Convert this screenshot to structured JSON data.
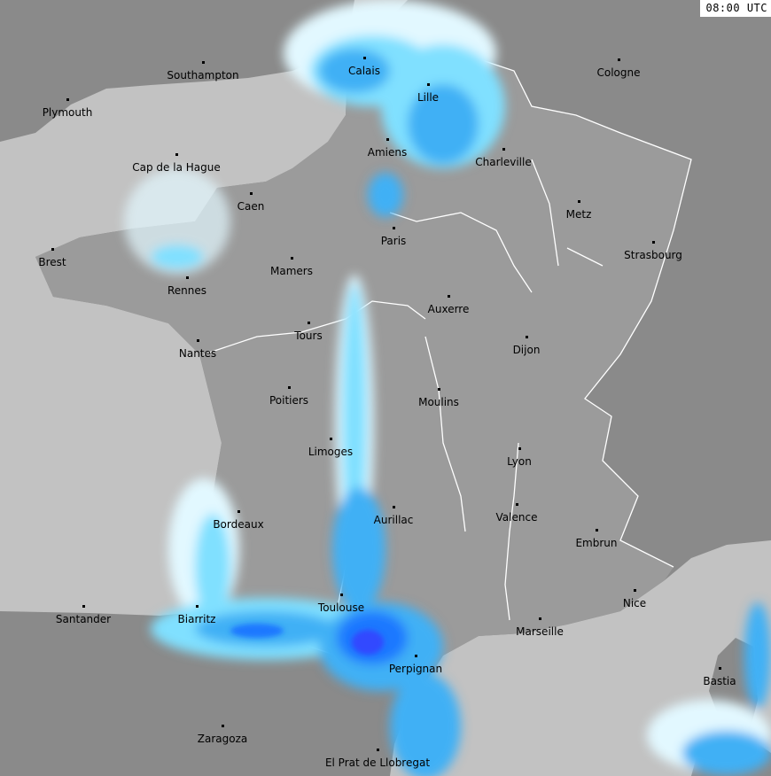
{
  "timestamp": "08:00 UTC",
  "colors": {
    "sea": "#c2c2c2",
    "land_outside": "#8a8a8a",
    "france": "#9b9b9b",
    "borders": "#ffffff",
    "precip_light": "#e2f8ff",
    "precip_low": "#80e0ff",
    "precip_mid": "#3fb0f5",
    "precip_high": "#1f78ff",
    "precip_very_high": "#3048ff"
  },
  "cities": [
    {
      "name": "Southampton"
    },
    {
      "name": "Plymouth"
    },
    {
      "name": "Calais"
    },
    {
      "name": "Lille"
    },
    {
      "name": "Cologne"
    },
    {
      "name": "Amiens"
    },
    {
      "name": "Charleville"
    },
    {
      "name": "Cap de la Hague"
    },
    {
      "name": "Caen"
    },
    {
      "name": "Metz"
    },
    {
      "name": "Paris"
    },
    {
      "name": "Strasbourg"
    },
    {
      "name": "Brest"
    },
    {
      "name": "Mamers"
    },
    {
      "name": "Rennes"
    },
    {
      "name": "Auxerre"
    },
    {
      "name": "Tours"
    },
    {
      "name": "Dijon"
    },
    {
      "name": "Nantes"
    },
    {
      "name": "Poitiers"
    },
    {
      "name": "Moulins"
    },
    {
      "name": "Limoges"
    },
    {
      "name": "Lyon"
    },
    {
      "name": "Valence"
    },
    {
      "name": "Aurillac"
    },
    {
      "name": "Bordeaux"
    },
    {
      "name": "Embrun"
    },
    {
      "name": "Nice"
    },
    {
      "name": "Toulouse"
    },
    {
      "name": "Santander"
    },
    {
      "name": "Biarritz"
    },
    {
      "name": "Marseille"
    },
    {
      "name": "Perpignan"
    },
    {
      "name": "Bastia"
    },
    {
      "name": "Zaragoza"
    },
    {
      "name": "El Prat de Llobregat"
    }
  ]
}
